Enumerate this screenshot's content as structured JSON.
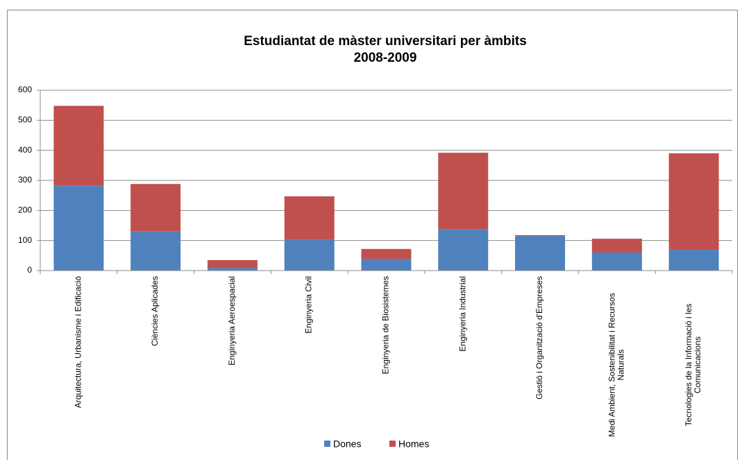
{
  "chart_data": {
    "type": "stacked_bar",
    "title": [
      "Estudiantat de màster universitari  per àmbits",
      "2008-2009"
    ],
    "categories": [
      "Arquitectura, Urbanisme i Edificació",
      "Ciències Aplicades",
      "Enginyeria Aeroespacial",
      "Enginyeria Civil",
      "Enginyeria de Biosistemes",
      "Enginyeria Industrial",
      "Gestió i Organització d'Empreses",
      "Medi Ambient, Sostenibilitat i Recursos Naturals",
      "Tecnologies de la Informació i les Comunicacions"
    ],
    "series": [
      {
        "name": "Dones",
        "color": "#4f81bd",
        "values": [
          282,
          131,
          9,
          102,
          39,
          138,
          115,
          60,
          69
        ]
      },
      {
        "name": "Homes",
        "color": "#c0504d",
        "values": [
          266,
          157,
          26,
          145,
          33,
          254,
          3,
          46,
          321
        ]
      }
    ],
    "ylim": [
      0,
      600
    ],
    "yticks": [
      0,
      100,
      200,
      300,
      400,
      500,
      600
    ],
    "grid": true,
    "legend": "bottom"
  }
}
